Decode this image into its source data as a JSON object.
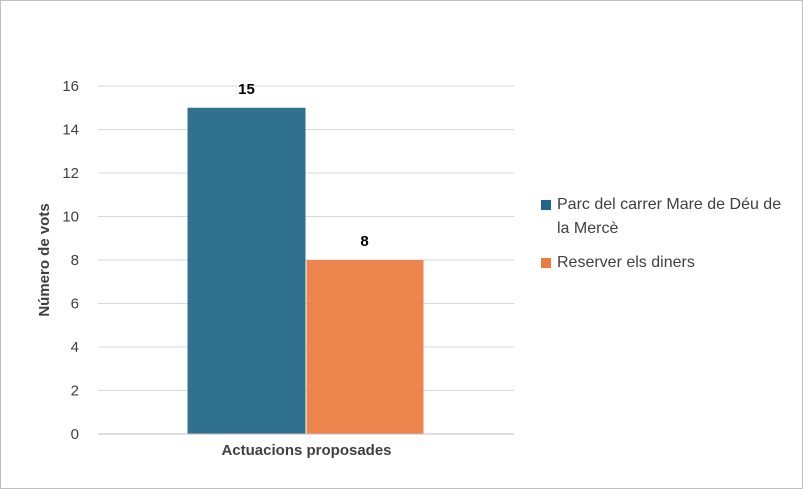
{
  "chart_data": {
    "type": "bar",
    "categories": [
      "Actuacions proposades"
    ],
    "series": [
      {
        "name": "Parc del carrer Mare de Déu de la Mercè",
        "values": [
          15
        ],
        "color": "#1f6587"
      },
      {
        "name": "Reserver els diners",
        "values": [
          8
        ],
        "color": "#ec7c3f"
      }
    ],
    "xlabel": "Actuacions proposades",
    "ylabel": "Número de vots",
    "ylim": [
      0,
      16
    ],
    "yticks": [
      0,
      2,
      4,
      6,
      8,
      10,
      12,
      14,
      16
    ],
    "data_labels": [
      "15",
      "8"
    ],
    "grid": true,
    "legend_position": "right"
  }
}
